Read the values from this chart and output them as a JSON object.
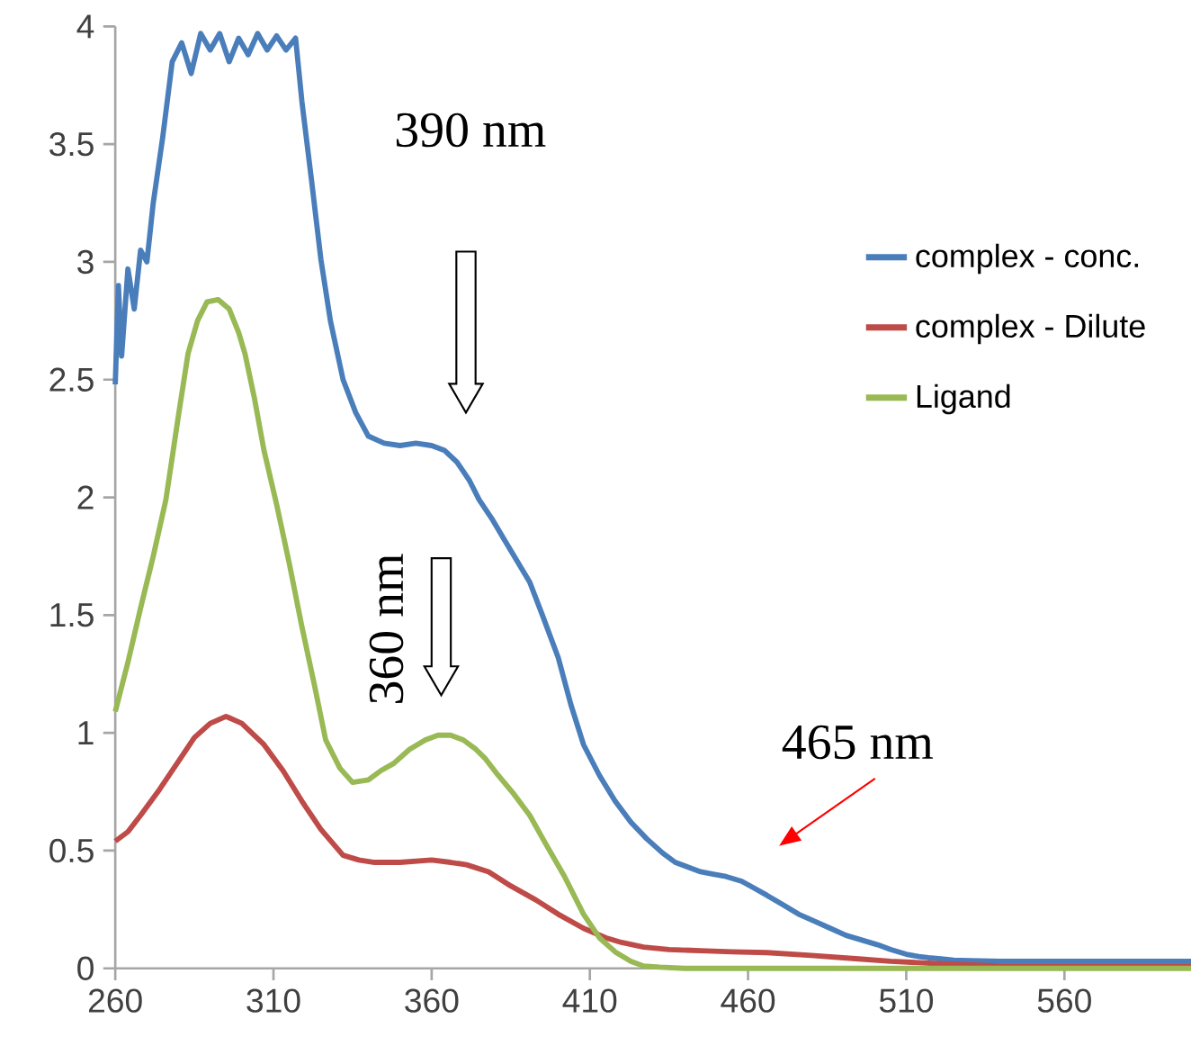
{
  "chart_data": {
    "type": "line",
    "xlim": [
      260,
      600
    ],
    "ylim": [
      0,
      4
    ],
    "xticks": [
      260,
      310,
      360,
      410,
      460,
      510,
      560
    ],
    "yticks": [
      0,
      0.5,
      1,
      1.5,
      2,
      2.5,
      3,
      3.5,
      4
    ],
    "grid": false,
    "legend": "top right",
    "marker": "none",
    "line_style": "solid",
    "annotations": [
      "390 nm",
      "360 nm",
      "465 nm"
    ],
    "series": [
      {
        "name": "complex - conc.",
        "color": "#4a7ebb",
        "x": [
          260,
          261,
          262,
          264,
          266,
          268,
          270,
          272,
          275,
          278,
          281,
          284,
          287,
          290,
          293,
          296,
          299,
          302,
          305,
          308,
          311,
          314,
          317,
          319,
          322,
          325,
          328,
          332,
          336,
          340,
          345,
          350,
          355,
          360,
          364,
          368,
          372,
          375,
          379,
          383,
          387,
          391,
          395,
          400,
          404,
          408,
          413,
          418,
          423,
          428,
          433,
          437,
          441,
          445,
          449,
          453,
          458,
          462,
          466,
          471,
          476,
          481,
          486,
          491,
          496,
          501,
          505,
          510,
          514,
          517,
          521,
          525,
          530,
          540,
          550,
          560,
          575,
          590,
          600
        ],
        "values": [
          2.48,
          2.9,
          2.6,
          2.97,
          2.8,
          3.05,
          3.0,
          3.25,
          3.53,
          3.85,
          3.93,
          3.8,
          3.97,
          3.9,
          3.97,
          3.85,
          3.95,
          3.88,
          3.97,
          3.9,
          3.96,
          3.9,
          3.95,
          3.68,
          3.35,
          3.01,
          2.75,
          2.5,
          2.36,
          2.26,
          2.23,
          2.22,
          2.23,
          2.22,
          2.2,
          2.15,
          2.07,
          1.99,
          1.91,
          1.82,
          1.73,
          1.64,
          1.5,
          1.32,
          1.12,
          0.95,
          0.82,
          0.71,
          0.62,
          0.55,
          0.49,
          0.45,
          0.43,
          0.41,
          0.4,
          0.39,
          0.37,
          0.34,
          0.31,
          0.27,
          0.23,
          0.2,
          0.17,
          0.14,
          0.12,
          0.1,
          0.08,
          0.06,
          0.05,
          0.045,
          0.04,
          0.035,
          0.033,
          0.03,
          0.03,
          0.03,
          0.03,
          0.03,
          0.03
        ]
      },
      {
        "name": "complex - Dilute",
        "color": "#be4b48",
        "x": [
          260,
          264,
          268,
          274,
          280,
          285,
          290,
          295,
          300,
          307,
          313,
          319,
          325,
          332,
          337,
          342,
          350,
          360,
          366,
          371,
          378,
          385,
          393,
          400,
          408,
          415,
          420,
          427,
          435,
          445,
          455,
          466,
          480,
          495,
          505,
          520,
          540,
          560,
          580,
          600
        ],
        "values": [
          0.54,
          0.58,
          0.65,
          0.76,
          0.88,
          0.98,
          1.04,
          1.07,
          1.04,
          0.95,
          0.84,
          0.71,
          0.59,
          0.48,
          0.46,
          0.45,
          0.45,
          0.46,
          0.45,
          0.44,
          0.41,
          0.35,
          0.29,
          0.23,
          0.17,
          0.13,
          0.11,
          0.09,
          0.08,
          0.075,
          0.07,
          0.067,
          0.055,
          0.04,
          0.03,
          0.02,
          0.01,
          0.01,
          0.01,
          0.01
        ]
      },
      {
        "name": "Ligand",
        "color": "#98b954",
        "x": [
          260,
          264,
          268,
          272,
          276,
          280,
          283,
          286,
          289,
          292.5,
          296,
          299,
          301,
          304,
          307,
          311,
          315,
          319,
          323,
          326.5,
          331,
          335,
          340,
          344,
          348,
          353,
          358,
          362,
          366,
          370,
          374,
          377,
          381,
          386,
          391,
          396,
          402,
          408,
          413,
          418,
          423,
          427,
          432,
          440,
          460,
          500,
          550,
          600
        ],
        "values": [
          1.09,
          1.3,
          1.53,
          1.75,
          1.99,
          2.35,
          2.61,
          2.75,
          2.83,
          2.84,
          2.8,
          2.7,
          2.61,
          2.42,
          2.2,
          1.97,
          1.72,
          1.45,
          1.2,
          0.97,
          0.85,
          0.79,
          0.8,
          0.84,
          0.87,
          0.93,
          0.97,
          0.99,
          0.99,
          0.97,
          0.93,
          0.89,
          0.82,
          0.74,
          0.65,
          0.53,
          0.39,
          0.23,
          0.13,
          0.07,
          0.03,
          0.01,
          0.005,
          0,
          0,
          0,
          0,
          0
        ]
      }
    ]
  }
}
